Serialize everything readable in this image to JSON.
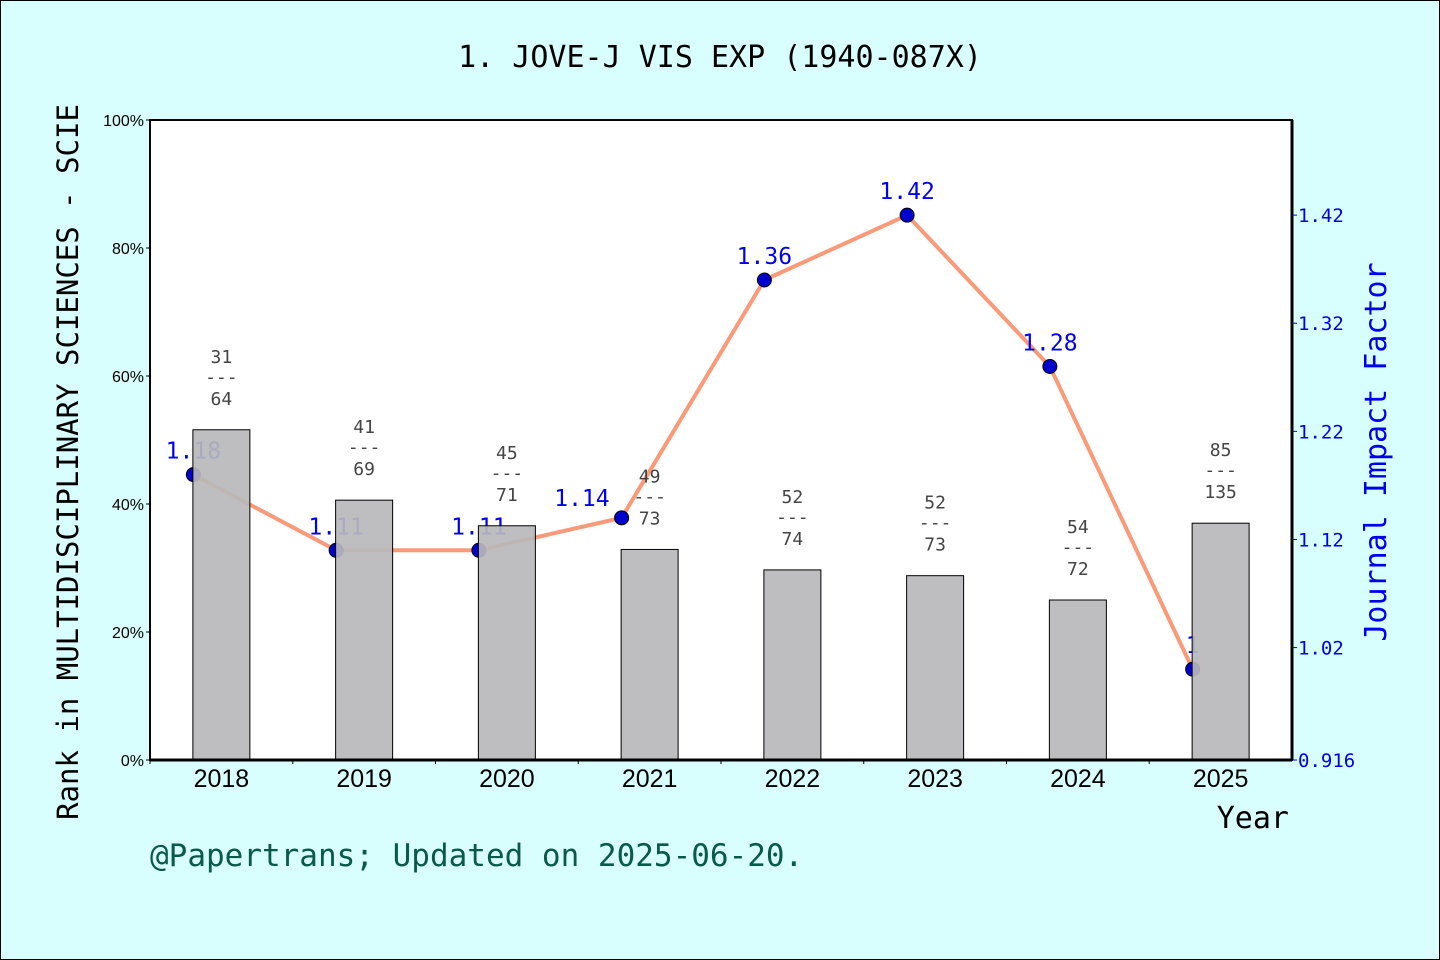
{
  "chart_data": {
    "type": "bar+line",
    "title": "1. JOVE-J VIS EXP (1940-087X)",
    "xlabel": "Year",
    "ylabel_left": "Rank in MULTIDISCIPLINARY SCIENCES - SCIE",
    "ylabel_right": "Journal Impact Factor",
    "categories": [
      "2018",
      "2019",
      "2020",
      "2021",
      "2022",
      "2023",
      "2024",
      "2025"
    ],
    "left_axis": {
      "ylim": [
        0,
        100
      ],
      "ticks": [
        "0%",
        "20%",
        "40%",
        "60%",
        "80%",
        "100%"
      ]
    },
    "right_axis": {
      "ylim": [
        0.916,
        1.508
      ],
      "ticks": [
        "0.916",
        "1.02",
        "1.12",
        "1.22",
        "1.32",
        "1.42"
      ]
    },
    "bars": {
      "rank": [
        31,
        41,
        45,
        49,
        52,
        52,
        54,
        85
      ],
      "total": [
        64,
        69,
        71,
        73,
        74,
        73,
        72,
        135
      ],
      "percent": [
        51.6,
        40.6,
        36.6,
        32.9,
        29.7,
        28.8,
        25.0,
        37.0
      ],
      "color": "#b8b9bb"
    },
    "line": {
      "values": [
        1.18,
        1.11,
        1.11,
        1.14,
        1.36,
        1.42,
        1.28,
        1.0
      ],
      "labels": [
        "1.18",
        "1.11",
        "1.11",
        "1.14",
        "1.36",
        "1.42",
        "1.28",
        "1"
      ],
      "line_color": "#fa9a78",
      "marker_color": "#0000cc"
    },
    "grid": false,
    "footer": "@Papertrans; Updated on 2025-06-20."
  }
}
